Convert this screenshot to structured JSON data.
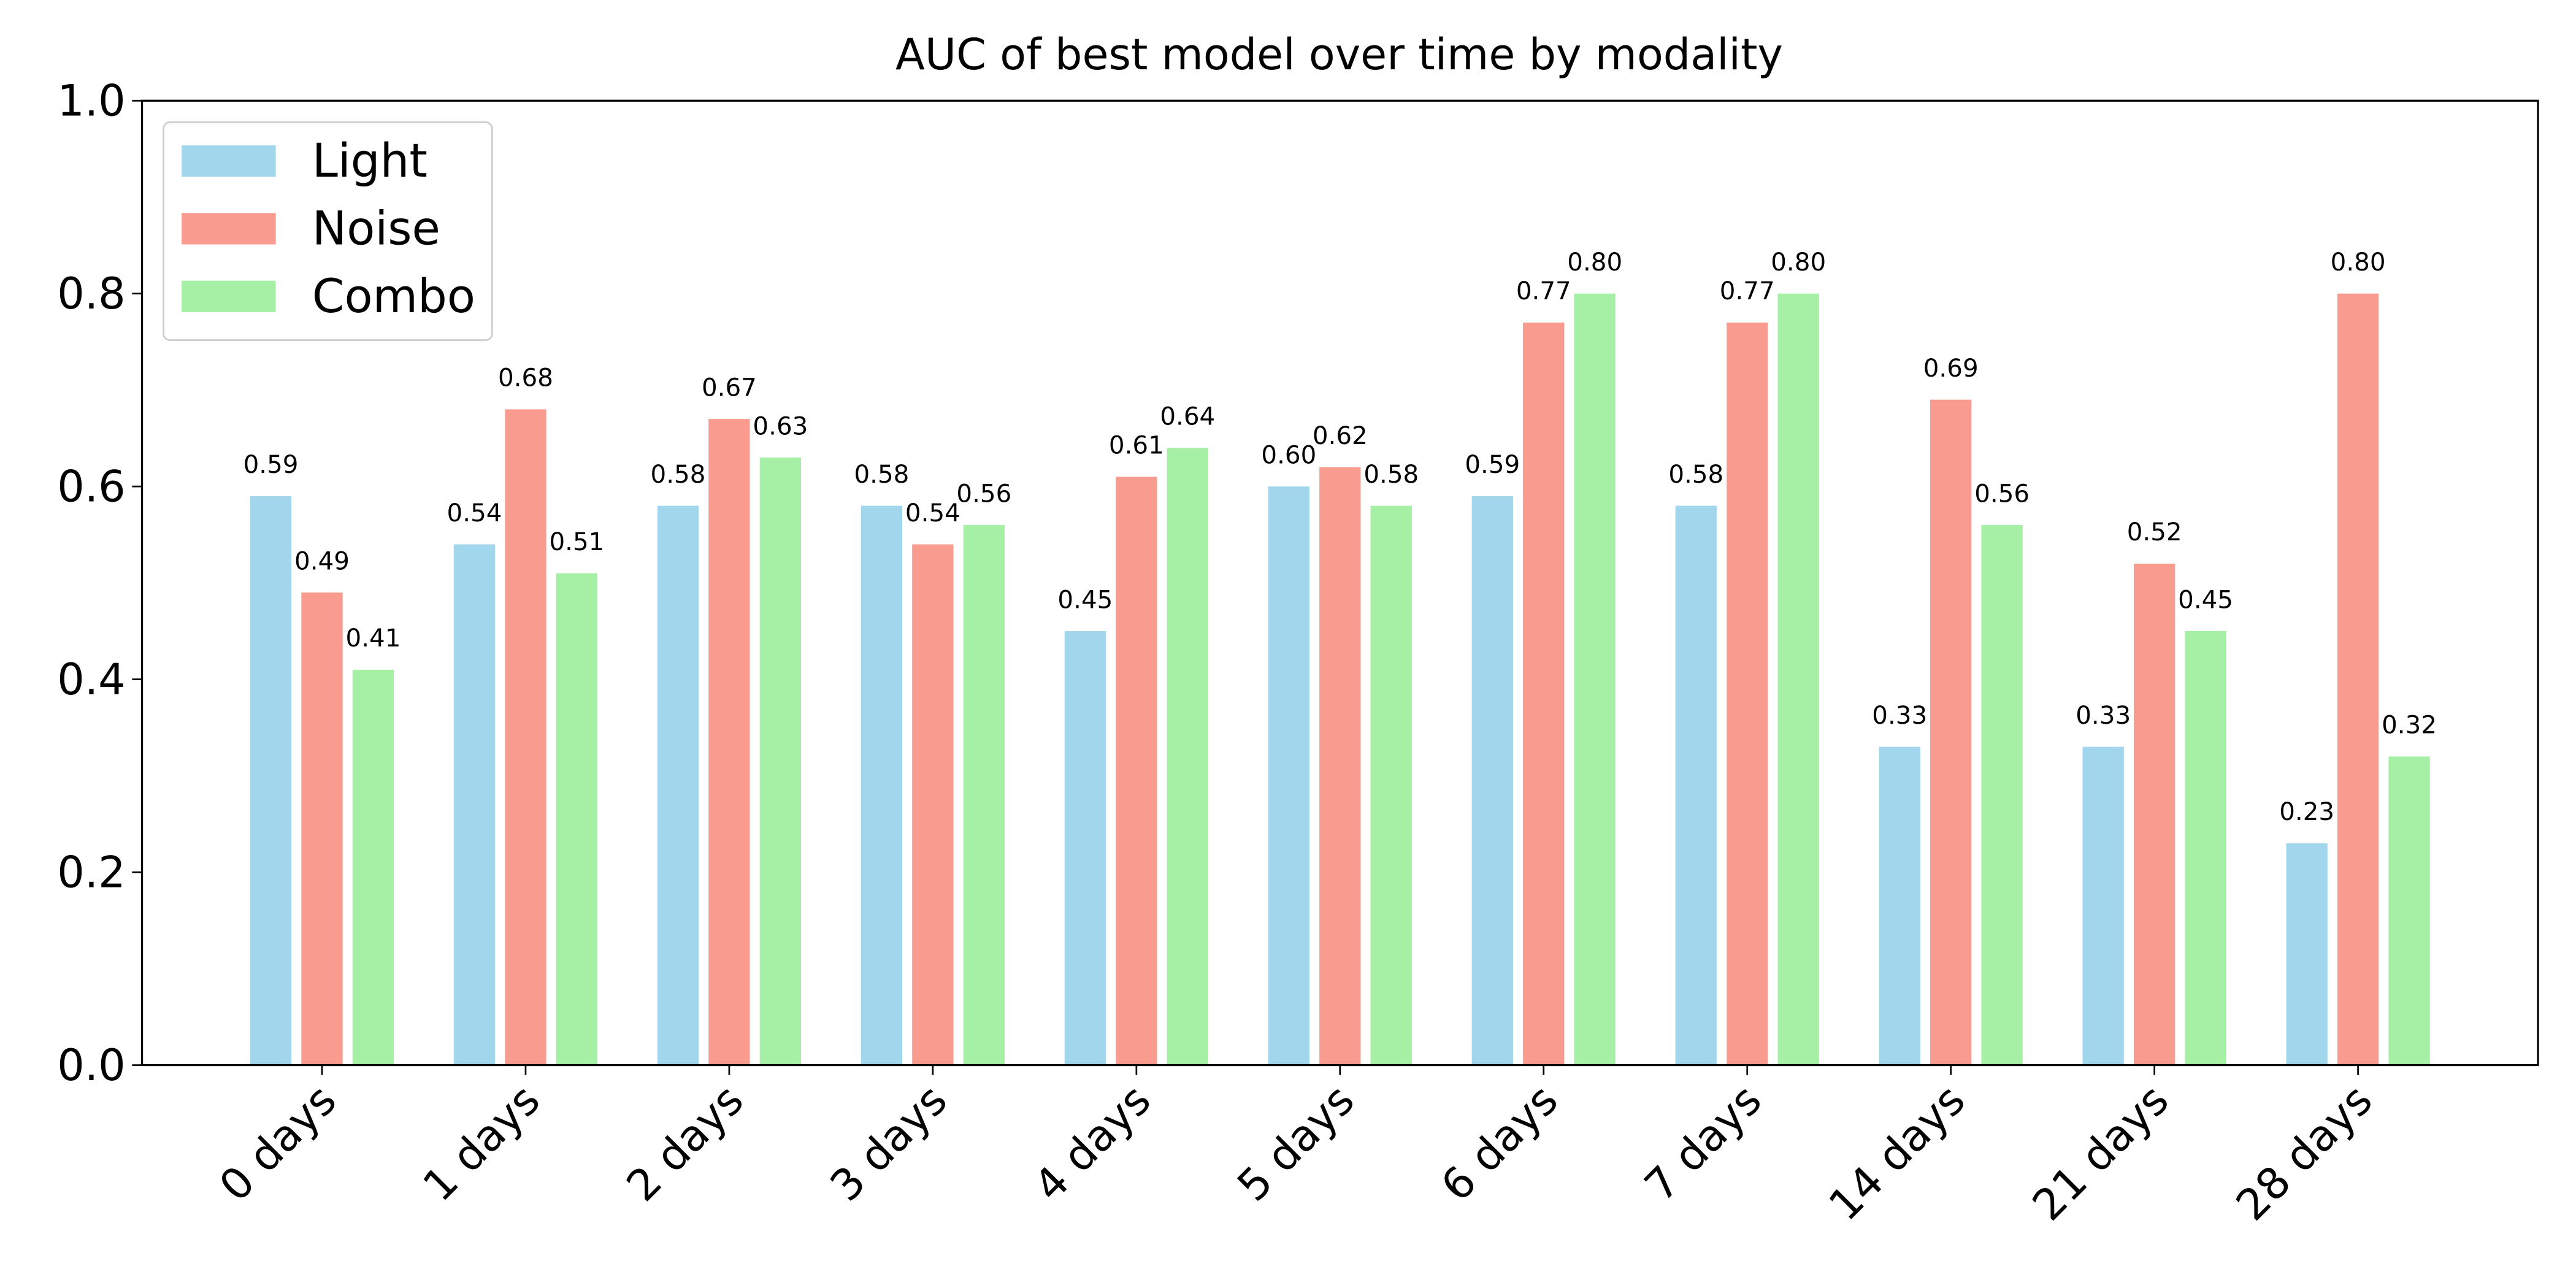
{
  "chart_data": {
    "type": "bar",
    "title": "AUC of best model over time by modality",
    "categories": [
      "0 days",
      "1 days",
      "2 days",
      "3 days",
      "4 days",
      "5 days",
      "6 days",
      "7 days",
      "14 days",
      "21 days",
      "28 days"
    ],
    "series": [
      {
        "name": "Light",
        "color": "#a1d6ec",
        "values": [
          0.59,
          0.54,
          0.58,
          0.58,
          0.45,
          0.6,
          0.59,
          0.58,
          0.33,
          0.33,
          0.23
        ],
        "value_labels": [
          "0.59",
          "0.54",
          "0.58",
          "0.58",
          "0.45",
          "0.60",
          "0.59",
          "0.58",
          "0.33",
          "0.33",
          "0.23"
        ]
      },
      {
        "name": "Noise",
        "color": "#f99b8e",
        "values": [
          0.49,
          0.68,
          0.67,
          0.54,
          0.61,
          0.62,
          0.77,
          0.77,
          0.69,
          0.52,
          0.8
        ],
        "value_labels": [
          "0.49",
          "0.68",
          "0.67",
          "0.54",
          "0.61",
          "0.62",
          "0.77",
          "0.77",
          "0.69",
          "0.52",
          "0.80"
        ]
      },
      {
        "name": "Combo",
        "color": "#a6f0a6",
        "values": [
          0.41,
          0.51,
          0.63,
          0.56,
          0.64,
          0.58,
          0.8,
          0.8,
          0.56,
          0.45,
          0.32
        ],
        "value_labels": [
          "0.41",
          "0.51",
          "0.63",
          "0.56",
          "0.64",
          "0.58",
          "0.80",
          "0.80",
          "0.56",
          "0.45",
          "0.32"
        ]
      }
    ],
    "ylim": [
      0,
      1
    ],
    "yticks": [
      {
        "value": 0,
        "label": "0.0"
      },
      0.2,
      0.4,
      0.6,
      0.8,
      {
        "value": 1,
        "label": "1.0"
      }
    ],
    "legend": "upper left",
    "grid": false
  }
}
